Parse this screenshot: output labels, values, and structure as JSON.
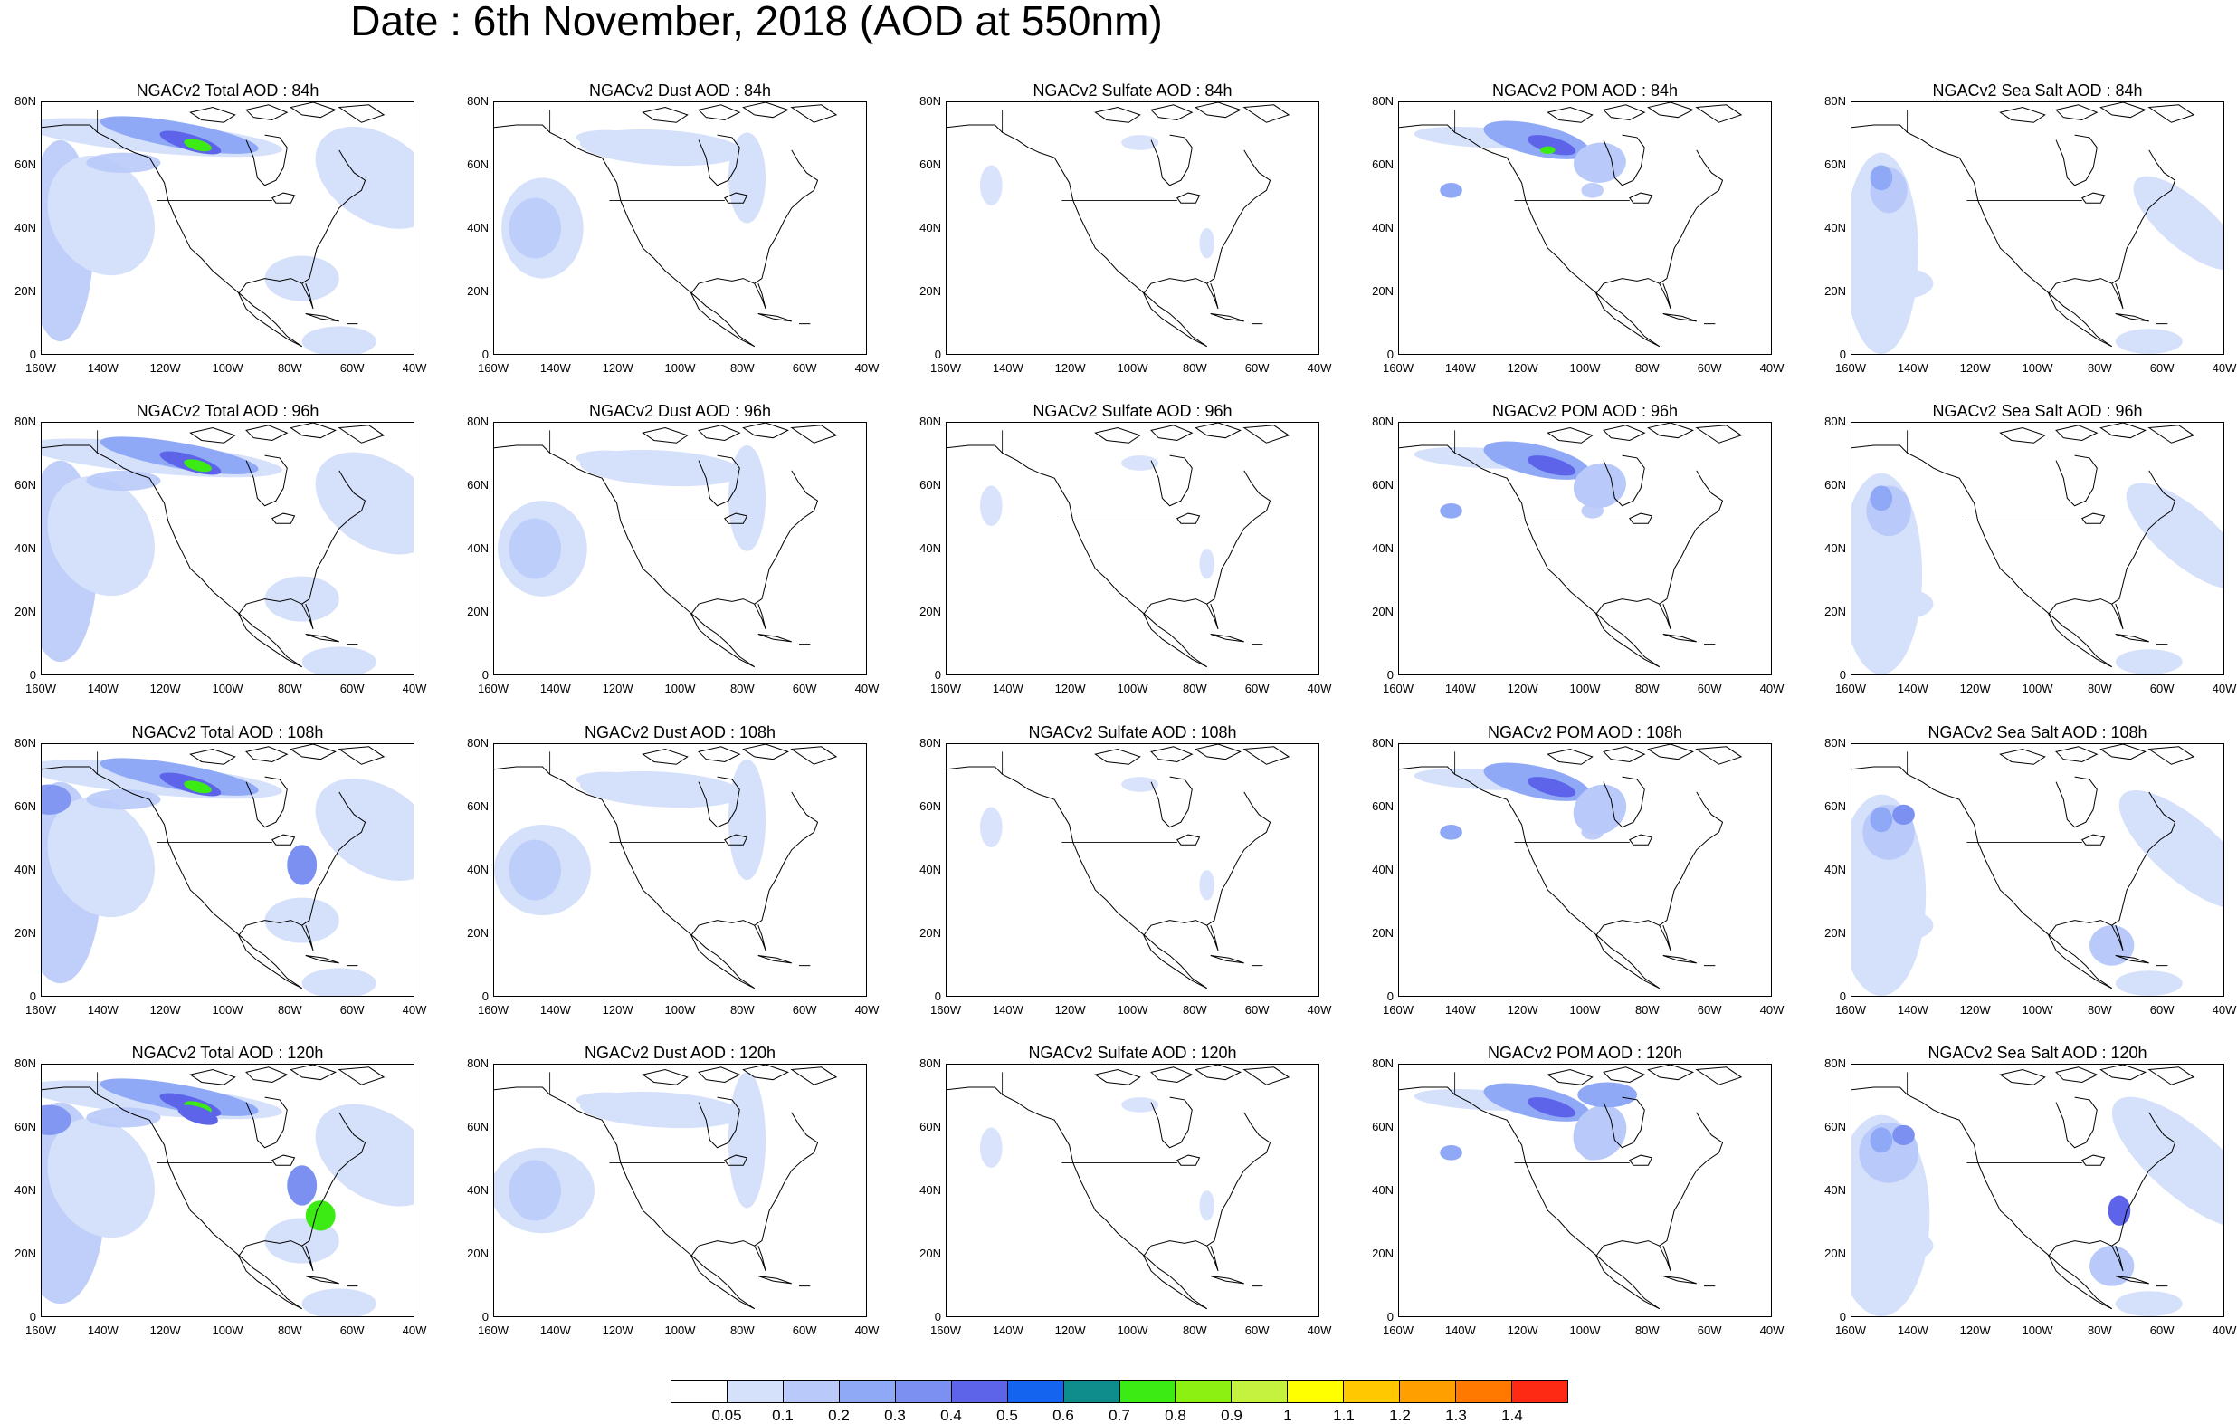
{
  "title": "Date : 6th November, 2018 (AOD at 550nm)",
  "axes": {
    "y_labels": [
      "80N",
      "60N",
      "40N",
      "20N",
      "0"
    ],
    "x_labels": [
      "160W",
      "140W",
      "120W",
      "100W",
      "80W",
      "60W",
      "40W"
    ]
  },
  "rows": [
    {
      "hour": "84h",
      "titles": [
        "NGACv2 Total AOD : 84h",
        "NGACv2 Dust AOD : 84h",
        "NGACv2 Sulfate AOD : 84h",
        "NGACv2 POM AOD : 84h",
        "NGACv2 Sea Salt AOD : 84h"
      ]
    },
    {
      "hour": "96h",
      "titles": [
        "NGACv2 Total AOD : 96h",
        "NGACv2 Dust AOD : 96h",
        "NGACv2 Sulfate AOD : 96h",
        "NGACv2 POM AOD : 96h",
        "NGACv2 Sea Salt AOD : 96h"
      ]
    },
    {
      "hour": "108h",
      "titles": [
        "NGACv2 Total AOD : 108h",
        "NGACv2 Dust AOD : 108h",
        "NGACv2 Sulfate AOD : 108h",
        "NGACv2 POM AOD : 108h",
        "NGACv2 Sea Salt AOD : 108h"
      ]
    },
    {
      "hour": "120h",
      "titles": [
        "NGACv2 Total AOD : 120h",
        "NGACv2 Dust AOD : 120h",
        "NGACv2 Sulfate AOD : 120h",
        "NGACv2 POM AOD : 120h",
        "NGACv2 Sea Salt  AOD : 120h"
      ]
    }
  ],
  "colorbar": {
    "labels": [
      "0.05",
      "0.1",
      "0.2",
      "0.3",
      "0.4",
      "0.5",
      "0.6",
      "0.7",
      "0.8",
      "0.9",
      "1",
      "1.1",
      "1.2",
      "1.3",
      "1.4"
    ],
    "colors": [
      "#ffffff",
      "#d5e0fb",
      "#b9cafa",
      "#8fa9f6",
      "#7b90f0",
      "#5e64ea",
      "#1464f0",
      "#0f8c8c",
      "#3ceb14",
      "#8cf012",
      "#c5f23f",
      "#ffff00",
      "#ffc800",
      "#ffa000",
      "#ff7800",
      "#ff2a14"
    ]
  }
}
